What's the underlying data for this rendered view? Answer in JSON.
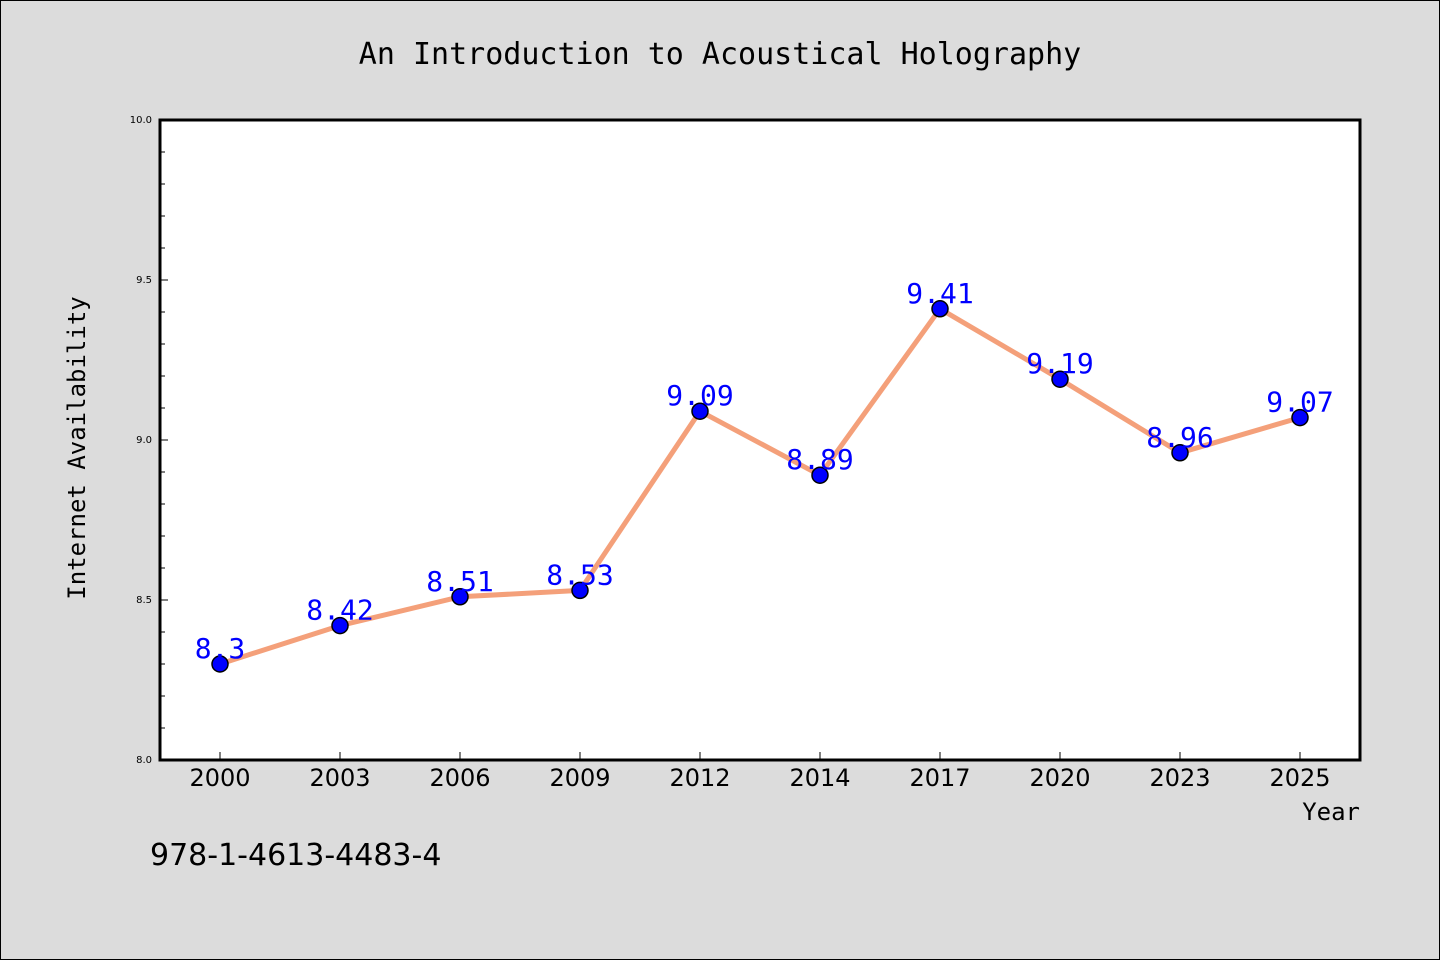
{
  "chart_data": {
    "type": "line",
    "title": "An Introduction to Acoustical Holography",
    "xlabel": "Year",
    "ylabel": "Internet Availability",
    "categories": [
      "2000",
      "2003",
      "2006",
      "2009",
      "2012",
      "2014",
      "2017",
      "2020",
      "2023",
      "2025"
    ],
    "series": [
      {
        "values": [
          8.3,
          8.42,
          8.51,
          8.53,
          9.09,
          8.89,
          9.41,
          9.19,
          8.96,
          9.07
        ],
        "data_labels": [
          "8.3",
          "8.42",
          "8.51",
          "8.53",
          "9.09",
          "8.89",
          "9.41",
          "9.19",
          "8.96",
          "9.07"
        ],
        "line_color": "#f4a07a",
        "marker_color": "#0000ff"
      }
    ],
    "ylim": [
      8.0,
      10.0
    ],
    "yticks": [
      "8.0",
      "8.5",
      "9.0",
      "9.5",
      "10.0"
    ],
    "grid": false,
    "label_color": "#0000ff"
  },
  "footer_text": "978-1-4613-4483-4",
  "colors": {
    "background": "#dcdcdc",
    "plot_background": "#ffffff",
    "axis": "#000000"
  }
}
